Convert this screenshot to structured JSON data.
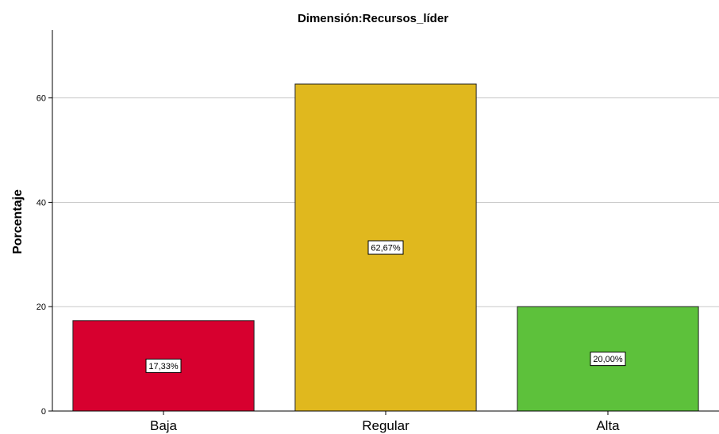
{
  "chart_data": {
    "type": "bar",
    "title": "Dimensión:Recursos_líder",
    "xlabel": "",
    "ylabel": "Porcentaje",
    "ylim": [
      0,
      73
    ],
    "yticks": [
      0,
      20,
      40,
      60
    ],
    "ytick_labels": [
      "0",
      "20",
      "40",
      "60"
    ],
    "grid": true,
    "categories": [
      "Baja",
      "Regular",
      "Alta"
    ],
    "values": [
      17.33,
      62.67,
      20.0
    ],
    "data_labels": [
      "17,33%",
      "62,67%",
      "20,00%"
    ],
    "colors": [
      "#d7002f",
      "#e0b81e",
      "#5dc13b"
    ]
  }
}
